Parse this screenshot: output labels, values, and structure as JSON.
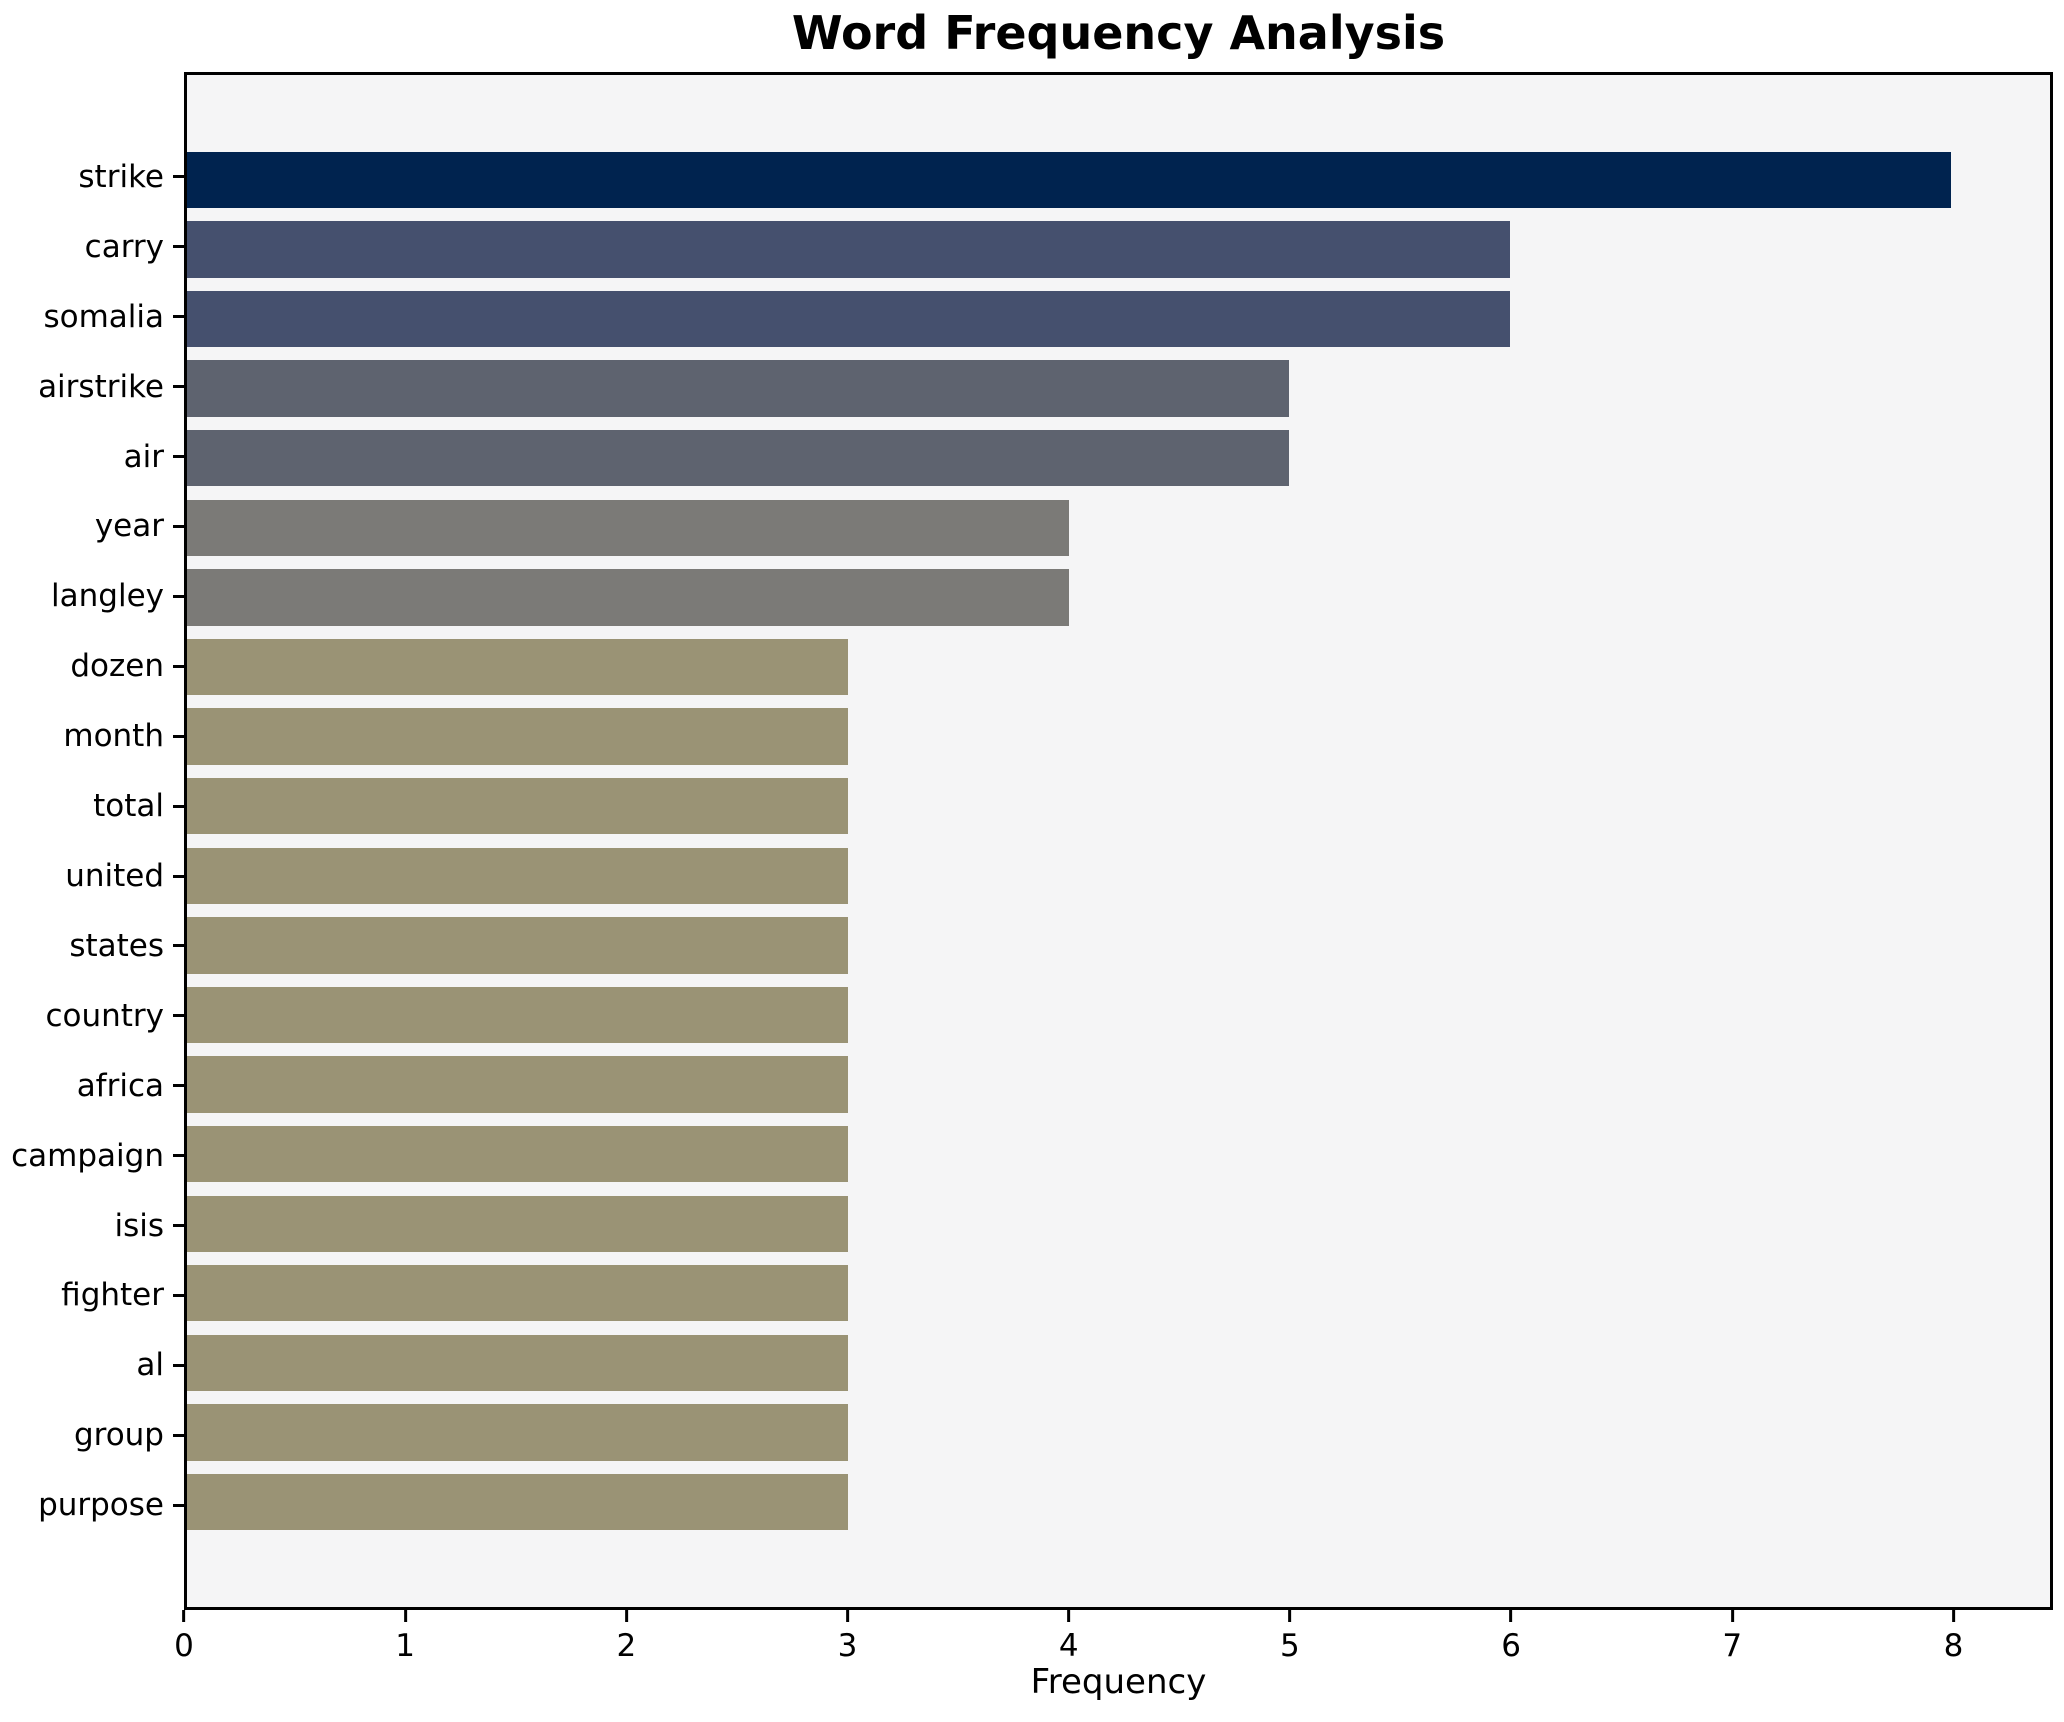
{
  "title": "Word Frequency Analysis",
  "xlabel": "Frequency",
  "colors": {
    "figure_background": "#ffffff",
    "plot_background": "#f5f5f6",
    "spine": "#000000",
    "text": "#000000"
  },
  "chart_data": {
    "type": "bar",
    "orientation": "horizontal",
    "title": "Word Frequency Analysis",
    "xlabel": "Frequency",
    "ylabel": "",
    "grid": false,
    "legend": false,
    "xlim": [
      0,
      8.45
    ],
    "x_ticks": [
      0,
      1,
      2,
      3,
      4,
      5,
      6,
      7,
      8
    ],
    "categories": [
      "strike",
      "carry",
      "somalia",
      "airstrike",
      "air",
      "year",
      "langley",
      "dozen",
      "month",
      "total",
      "united",
      "states",
      "country",
      "africa",
      "campaign",
      "isis",
      "fighter",
      "al",
      "group",
      "purpose"
    ],
    "values": [
      8,
      6,
      6,
      5,
      5,
      4,
      4,
      3,
      3,
      3,
      3,
      3,
      3,
      3,
      3,
      3,
      3,
      3,
      3,
      3
    ],
    "bar_colors": [
      "#00234f",
      "#45506e",
      "#45506e",
      "#5e636f",
      "#5e636f",
      "#7b7a77",
      "#7b7a77",
      "#9a9375",
      "#9a9375",
      "#9a9375",
      "#9a9375",
      "#9a9375",
      "#9a9375",
      "#9a9375",
      "#9a9375",
      "#9a9375",
      "#9a9375",
      "#9a9375",
      "#9a9375",
      "#9a9375"
    ],
    "value_color_map": {
      "8": "#00234f",
      "6": "#45506e",
      "5": "#5e636f",
      "4": "#7b7a77",
      "3": "#9a9375"
    }
  }
}
